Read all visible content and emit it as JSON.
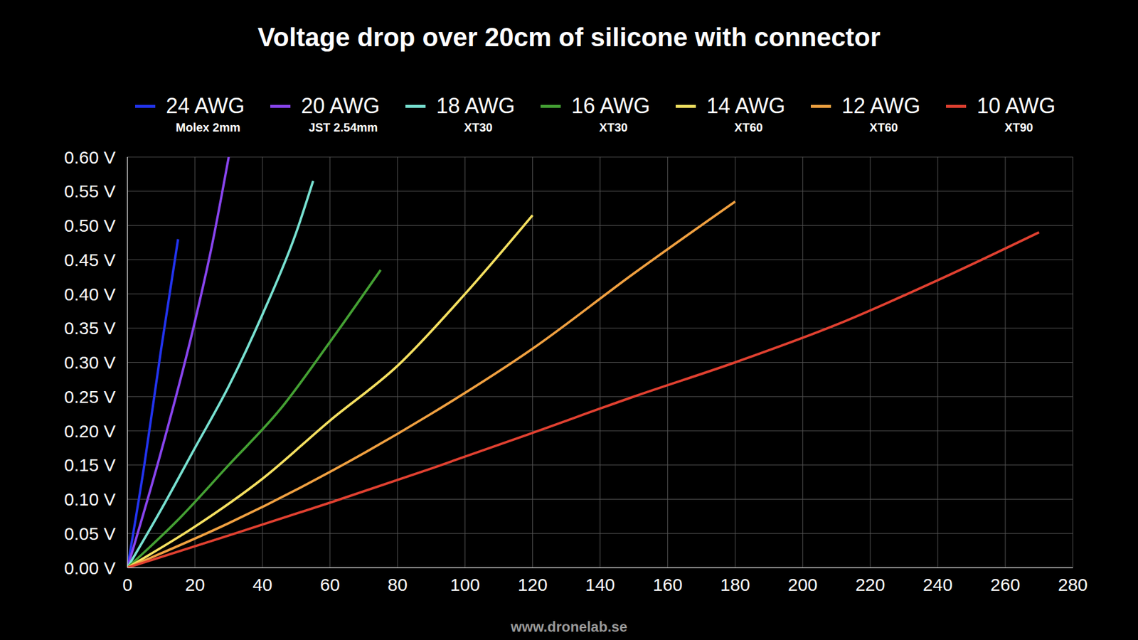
{
  "chart_data": {
    "type": "line",
    "title": "Voltage drop over 20cm of silicone with connector",
    "credit": "www.dronelab.se",
    "legend": "top",
    "grid": true,
    "xlim": [
      0,
      280
    ],
    "xticks": [
      0,
      20,
      40,
      60,
      80,
      100,
      120,
      140,
      160,
      180,
      200,
      220,
      240,
      260,
      280
    ],
    "ylim": [
      0,
      0.6
    ],
    "yticks": [
      {
        "value": 0,
        "label": "0.00 V"
      },
      {
        "value": 0.05,
        "label": "0.05 V"
      },
      {
        "value": 0.1,
        "label": "0.10 V"
      },
      {
        "value": 0.15,
        "label": "0.15 V"
      },
      {
        "value": 0.2,
        "label": "0.20 V"
      },
      {
        "value": 0.25,
        "label": "0.25 V"
      },
      {
        "value": 0.3,
        "label": "0.30 V"
      },
      {
        "value": 0.35,
        "label": "0.35 V"
      },
      {
        "value": 0.4,
        "label": "0.40 V"
      },
      {
        "value": 0.45,
        "label": "0.45 V"
      },
      {
        "value": 0.5,
        "label": "0.50 V"
      },
      {
        "value": 0.55,
        "label": "0.55 V"
      },
      {
        "value": 0.6,
        "label": "0.60 V"
      }
    ],
    "series": [
      {
        "name": "24 AWG",
        "connector": "Molex 2mm",
        "color": "#2233ee",
        "x": [
          0,
          5,
          10,
          15
        ],
        "values": [
          0,
          0.15,
          0.32,
          0.48
        ]
      },
      {
        "name": "20 AWG",
        "connector": "JST 2.54mm",
        "color": "#8844ee",
        "x": [
          0,
          10,
          20,
          25,
          30
        ],
        "values": [
          0,
          0.17,
          0.36,
          0.47,
          0.6
        ]
      },
      {
        "name": "18 AWG",
        "connector": "XT30",
        "color": "#77e0d0",
        "x": [
          0,
          10,
          20,
          30,
          40,
          50,
          55
        ],
        "values": [
          0,
          0.085,
          0.175,
          0.265,
          0.37,
          0.49,
          0.565
        ]
      },
      {
        "name": "16 AWG",
        "connector": "XT30",
        "color": "#44a033",
        "x": [
          0,
          15,
          30,
          45,
          60,
          75
        ],
        "values": [
          0,
          0.07,
          0.15,
          0.23,
          0.33,
          0.435
        ]
      },
      {
        "name": "14 AWG",
        "connector": "XT60",
        "color": "#f5e060",
        "x": [
          0,
          20,
          40,
          60,
          80,
          100,
          120
        ],
        "values": [
          0,
          0.06,
          0.13,
          0.215,
          0.295,
          0.4,
          0.515
        ]
      },
      {
        "name": "12 AWG",
        "connector": "XT60",
        "color": "#f0a040",
        "x": [
          0,
          30,
          60,
          90,
          120,
          150,
          180
        ],
        "values": [
          0,
          0.065,
          0.14,
          0.225,
          0.32,
          0.43,
          0.535
        ]
      },
      {
        "name": "10 AWG",
        "connector": "XT90",
        "color": "#e04030",
        "x": [
          0,
          30,
          60,
          90,
          120,
          150,
          180,
          210,
          240,
          270
        ],
        "values": [
          0,
          0.047,
          0.095,
          0.145,
          0.197,
          0.25,
          0.3,
          0.355,
          0.42,
          0.49
        ]
      }
    ]
  }
}
